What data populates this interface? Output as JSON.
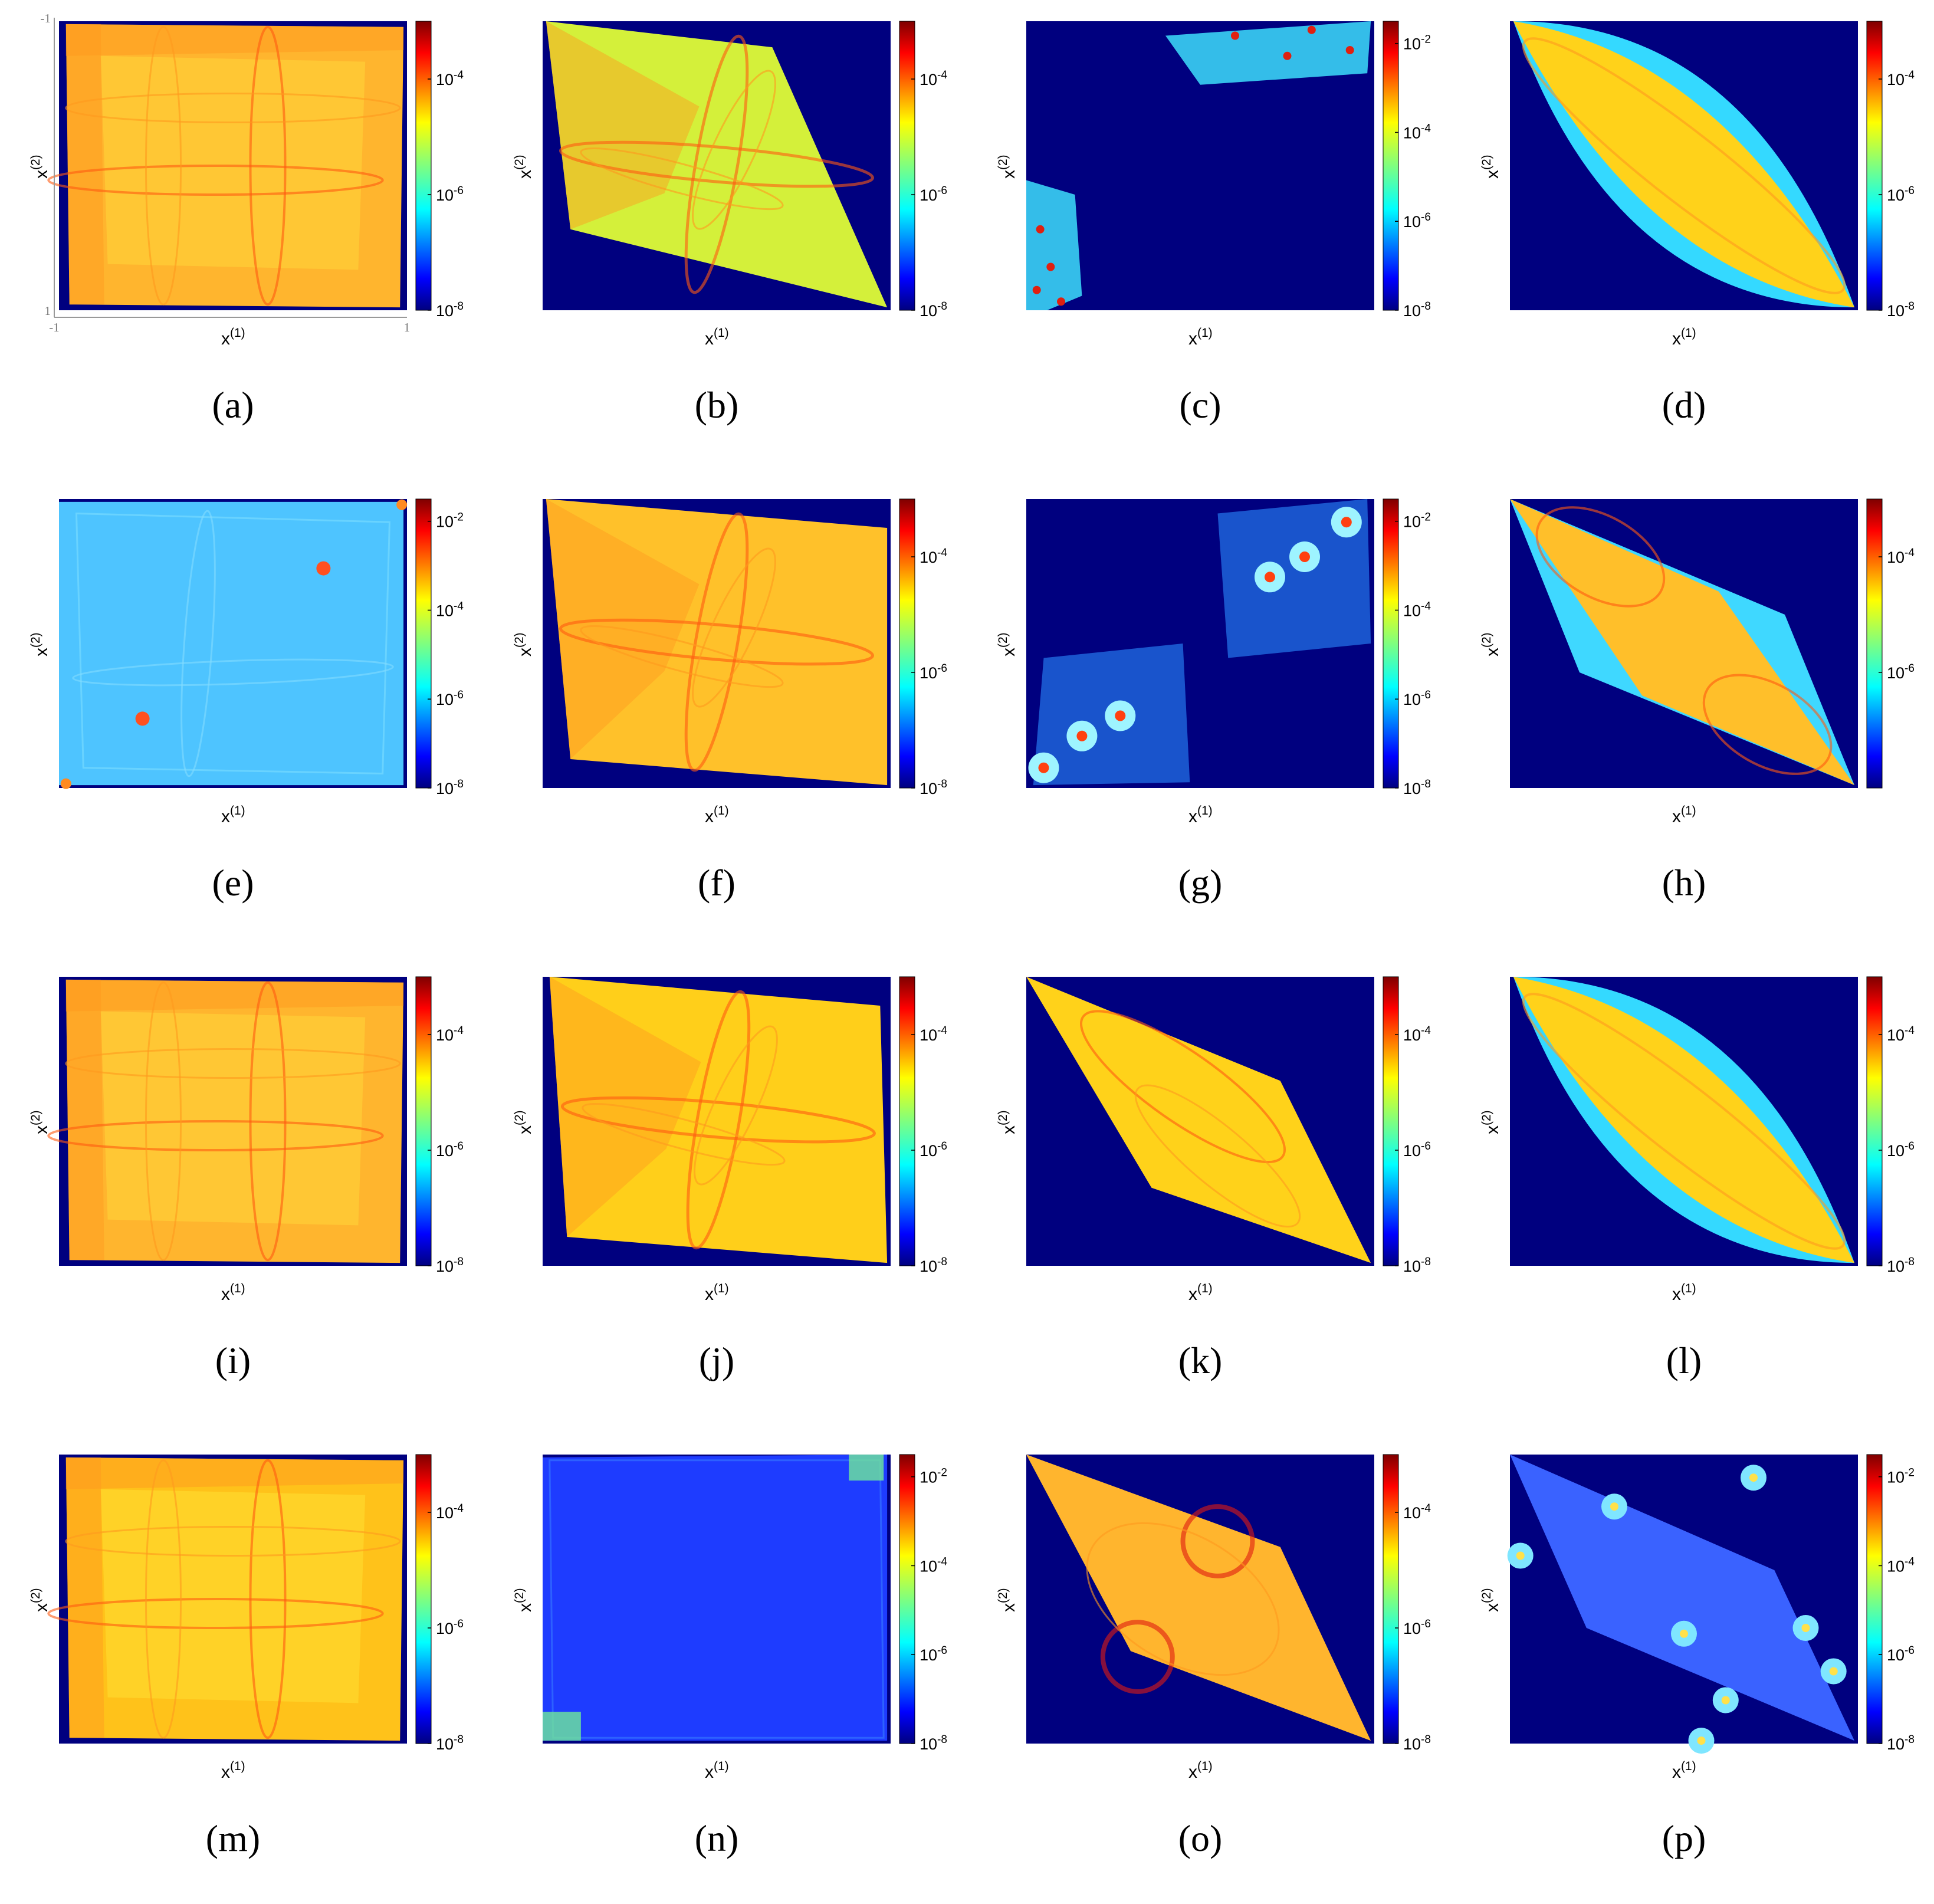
{
  "figure": {
    "x_label": "x",
    "x_label_sup": "(1)",
    "y_label": "x",
    "y_label_sup": "(2)",
    "colormap": "jet",
    "color_scale": "log",
    "background_color": "#00007f",
    "first_panel_axis_ticks": {
      "top_left": "-1",
      "bottom_left": "1",
      "x_left": "-1",
      "x_right": "1"
    }
  },
  "panels": [
    {
      "caption": "(a)",
      "colorbar": {
        "ticks": [
          "10",
          "10",
          "10"
        ],
        "exponents": [
          "-4",
          "-6",
          "-8"
        ],
        "ylim_log10": [
          -8,
          -3
        ]
      },
      "shape": "square",
      "base_color": "#ffb52e"
    },
    {
      "caption": "(b)",
      "colorbar": {
        "ticks": [
          "10",
          "10",
          "10"
        ],
        "exponents": [
          "-4",
          "-6",
          "-8"
        ],
        "ylim_log10": [
          -8,
          -3
        ]
      },
      "shape": "quad-b",
      "base_color": "#d4f03a"
    },
    {
      "caption": "(c)",
      "colorbar": {
        "ticks": [
          "10",
          "10",
          "10",
          "10"
        ],
        "exponents": [
          "-2",
          "-4",
          "-6",
          "-8"
        ],
        "ylim_log10": [
          -8,
          -1.5
        ]
      },
      "shape": "corners-c",
      "base_color": "#3ad1f5"
    },
    {
      "caption": "(d)",
      "colorbar": {
        "ticks": [
          "10",
          "10",
          "10"
        ],
        "exponents": [
          "-4",
          "-6",
          "-8"
        ],
        "ylim_log10": [
          -8,
          -3
        ]
      },
      "shape": "lens",
      "base_color": "#ffd21a"
    },
    {
      "caption": "(e)",
      "colorbar": {
        "ticks": [
          "10",
          "10",
          "10",
          "10"
        ],
        "exponents": [
          "-2",
          "-4",
          "-6",
          "-8"
        ],
        "ylim_log10": [
          -8,
          -1.5
        ]
      },
      "shape": "square-e",
      "base_color": "#4ec4ff"
    },
    {
      "caption": "(f)",
      "colorbar": {
        "ticks": [
          "10",
          "10",
          "10"
        ],
        "exponents": [
          "-4",
          "-6",
          "-8"
        ],
        "ylim_log10": [
          -8,
          -3
        ]
      },
      "shape": "quad-f",
      "base_color": "#ffc12a"
    },
    {
      "caption": "(g)",
      "colorbar": {
        "ticks": [
          "10",
          "10",
          "10",
          "10"
        ],
        "exponents": [
          "-2",
          "-4",
          "-6",
          "-8"
        ],
        "ylim_log10": [
          -8,
          -1.5
        ]
      },
      "shape": "corners-g",
      "base_color": "#1f5cff"
    },
    {
      "caption": "(h)",
      "colorbar": {
        "ticks": [
          "10",
          "10"
        ],
        "exponents": [
          "-4",
          "-6"
        ],
        "ylim_log10": [
          -8,
          -3
        ]
      },
      "shape": "rhomb-h",
      "base_color": "#ffbf2a"
    },
    {
      "caption": "(i)",
      "colorbar": {
        "ticks": [
          "10",
          "10",
          "10"
        ],
        "exponents": [
          "-4",
          "-6",
          "-8"
        ],
        "ylim_log10": [
          -8,
          -3
        ]
      },
      "shape": "square",
      "base_color": "#ffb52e"
    },
    {
      "caption": "(j)",
      "colorbar": {
        "ticks": [
          "10",
          "10",
          "10"
        ],
        "exponents": [
          "-4",
          "-6",
          "-8"
        ],
        "ylim_log10": [
          -8,
          -3
        ]
      },
      "shape": "quad-j",
      "base_color": "#ffcf1a"
    },
    {
      "caption": "(k)",
      "colorbar": {
        "ticks": [
          "10",
          "10",
          "10"
        ],
        "exponents": [
          "-4",
          "-6",
          "-8"
        ],
        "ylim_log10": [
          -8,
          -3
        ]
      },
      "shape": "rhomb-k",
      "base_color": "#ffd21a"
    },
    {
      "caption": "(l)",
      "colorbar": {
        "ticks": [
          "10",
          "10",
          "10"
        ],
        "exponents": [
          "-4",
          "-6",
          "-8"
        ],
        "ylim_log10": [
          -8,
          -3
        ]
      },
      "shape": "lens",
      "base_color": "#ffd21a"
    },
    {
      "caption": "(m)",
      "colorbar": {
        "ticks": [
          "10",
          "10",
          "10"
        ],
        "exponents": [
          "-4",
          "-6",
          "-8"
        ],
        "ylim_log10": [
          -8,
          -3
        ]
      },
      "shape": "square-m",
      "base_color": "#ffc21a"
    },
    {
      "caption": "(n)",
      "colorbar": {
        "ticks": [
          "10",
          "10",
          "10",
          "10"
        ],
        "exponents": [
          "-2",
          "-4",
          "-6",
          "-8"
        ],
        "ylim_log10": [
          -8,
          -1.5
        ]
      },
      "shape": "square-n",
      "base_color": "#1e3cff"
    },
    {
      "caption": "(o)",
      "colorbar": {
        "ticks": [
          "10",
          "10",
          "10"
        ],
        "exponents": [
          "-4",
          "-6",
          "-8"
        ],
        "ylim_log10": [
          -8,
          -3
        ]
      },
      "shape": "rhomb-o",
      "base_color": "#ffb52e"
    },
    {
      "caption": "(p)",
      "colorbar": {
        "ticks": [
          "10",
          "10",
          "10",
          "10"
        ],
        "exponents": [
          "-2",
          "-4",
          "-6",
          "-8"
        ],
        "ylim_log10": [
          -8,
          -1.5
        ]
      },
      "shape": "rhomb-p",
      "base_color": "#3a62ff"
    }
  ]
}
